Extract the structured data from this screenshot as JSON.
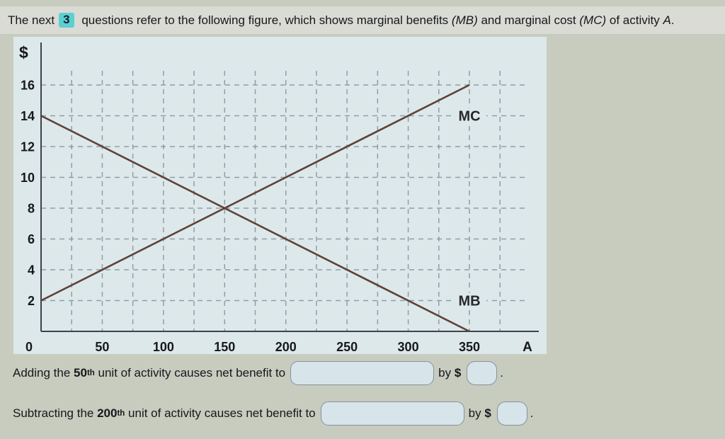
{
  "colors": {
    "page_bg": "#c7ccbf",
    "header_bg": "#d9dbd4",
    "highlight": "#5ccfd2",
    "chart_bg": "#dde8ea",
    "curve": "#5e4237",
    "grid": "#7e8c98",
    "axis": "#3e434b",
    "input_fill": "#d7e4ea",
    "input_border": "#87929b"
  },
  "header": {
    "part1": "The next",
    "count": "3",
    "part2": " questions refer to the following figure, which shows marginal benefits ",
    "mb": "(MB)",
    "part3": " and marginal cost ",
    "mc": "(MC)",
    "part4": " of activity ",
    "activity": "A",
    "part5": "."
  },
  "chart_data": {
    "type": "line",
    "title": "",
    "ylabel": "$",
    "xlabel": "A",
    "x_ticks": [
      0,
      50,
      100,
      150,
      200,
      250,
      300,
      350
    ],
    "y_ticks": [
      2,
      4,
      6,
      8,
      10,
      12,
      14,
      16
    ],
    "x_grid_step": 25,
    "y_grid_step": 2,
    "xlim": [
      0,
      390
    ],
    "ylim": [
      0,
      16.8
    ],
    "grid": "dashed",
    "legend_position": "on-line-labels",
    "series": [
      {
        "name": "MB",
        "points": [
          [
            0,
            14
          ],
          [
            350,
            0
          ]
        ],
        "label_pos": [
          350,
          2
        ]
      },
      {
        "name": "MC",
        "points": [
          [
            0,
            2
          ],
          [
            350,
            16
          ]
        ],
        "label_pos": [
          350,
          14
        ]
      }
    ],
    "intersection": [
      150,
      8
    ],
    "line_color": "#5e4237",
    "grid_color": "#7e8c98",
    "axis_color": "#3e434b"
  },
  "questions": [
    {
      "prefix": "Adding the ",
      "ordinal": "50",
      "ordinal_suffix": "th",
      "rest": " unit of activity causes net benefit to",
      "by_label": "by ",
      "dollar_sign": "$",
      "end_punct": "."
    },
    {
      "prefix": "Subtracting the ",
      "ordinal": "200",
      "ordinal_suffix": "th",
      "rest": " unit of activity causes net benefit to",
      "by_label": "by ",
      "dollar_sign": "$",
      "end_punct": "."
    }
  ]
}
